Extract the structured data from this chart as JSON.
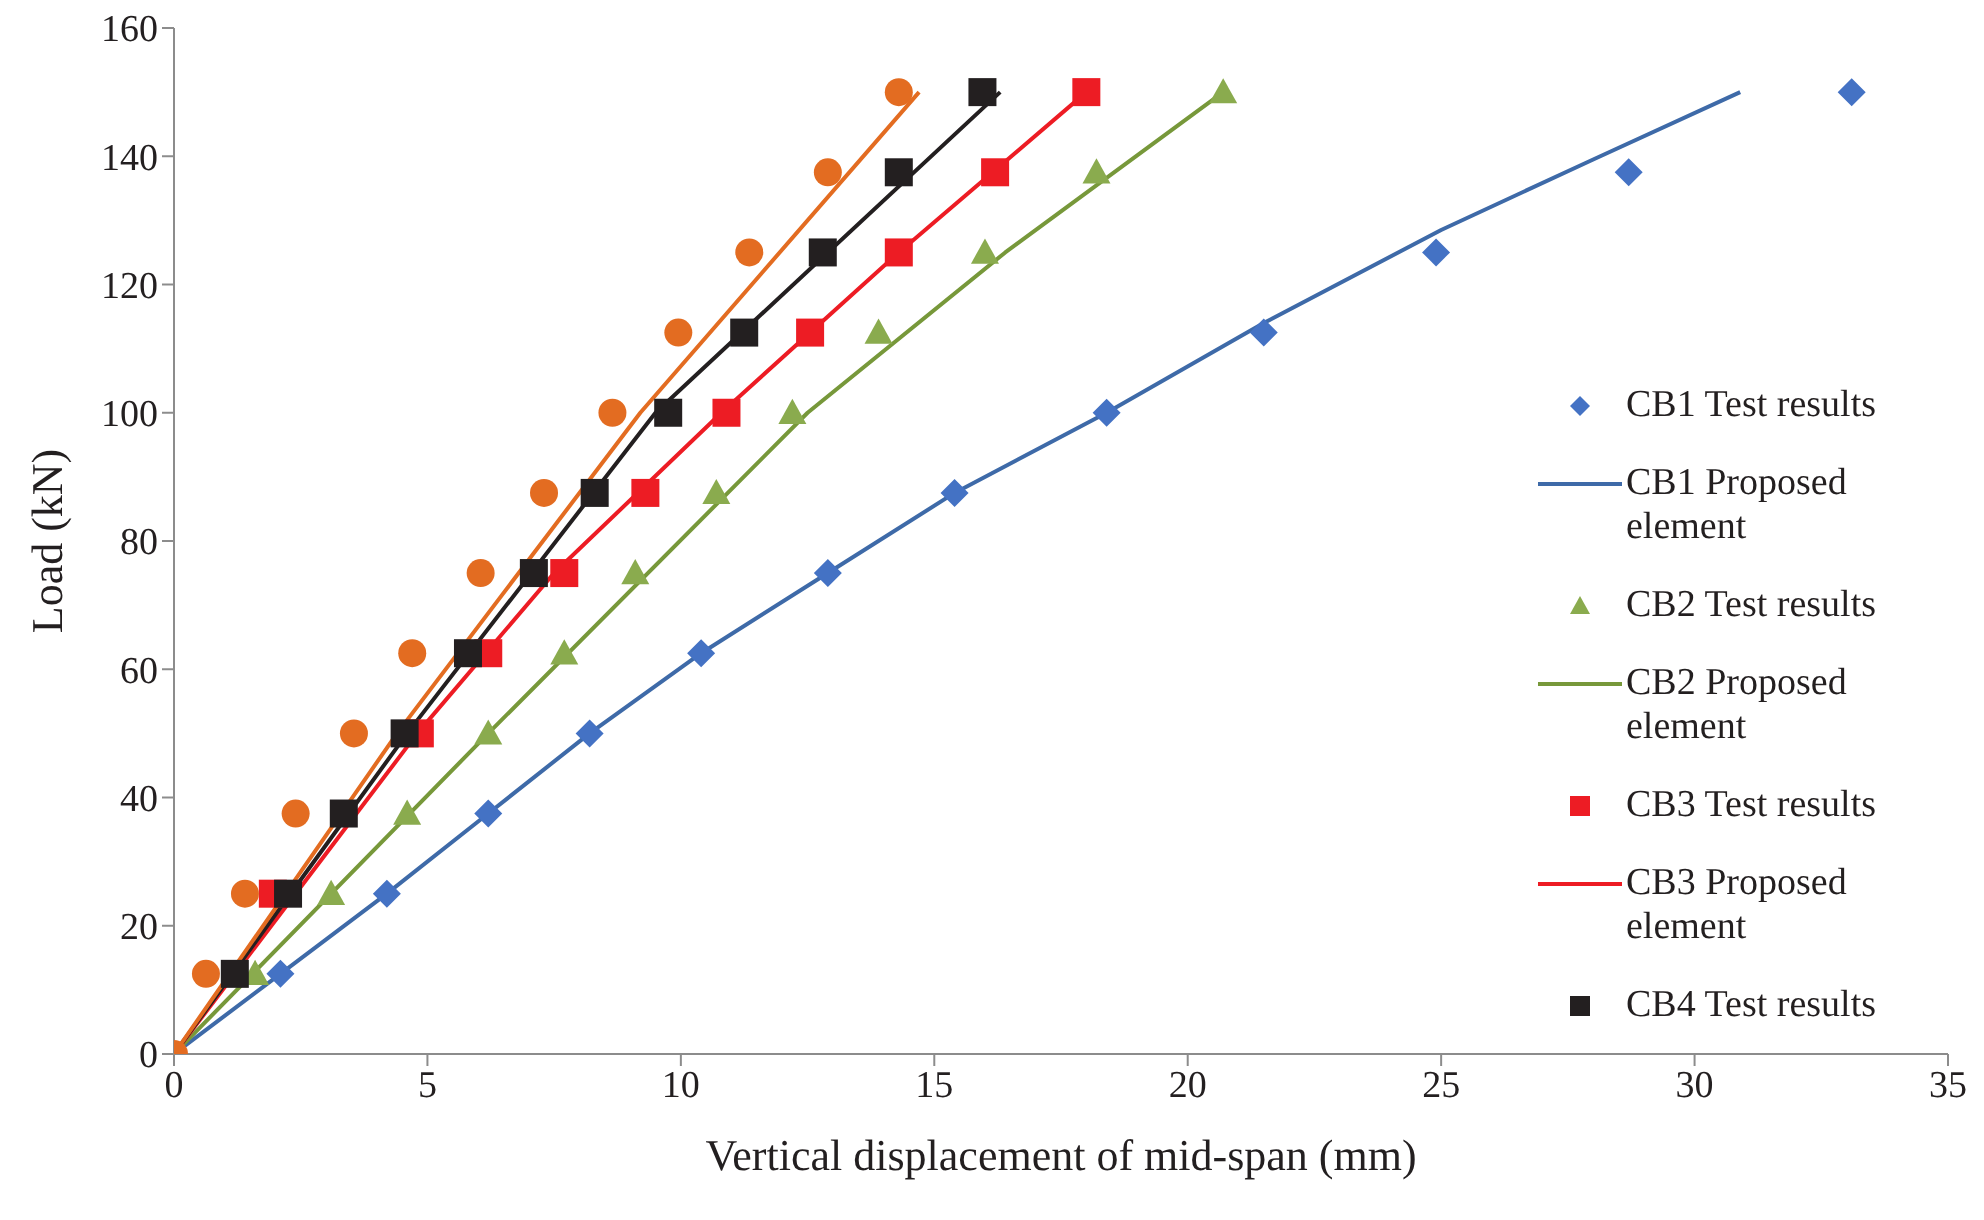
{
  "chart_data": {
    "type": "scatter",
    "xlabel": "Vertical displacement of mid-span (mm)",
    "ylabel": "Load (kN)",
    "xlim": [
      0,
      35
    ],
    "xticks": [
      0,
      5,
      10,
      15,
      20,
      25,
      30,
      35
    ],
    "ylim": [
      0,
      160
    ],
    "yticks": [
      0,
      20,
      40,
      60,
      80,
      100,
      120,
      140,
      160
    ],
    "grid": false,
    "legend": "right",
    "series": [
      {
        "name": "CB1 Test results",
        "marker": "diamond",
        "color": "#4472c4",
        "x": [
          2.1,
          4.2,
          6.2,
          8.2,
          10.4,
          12.9,
          15.4,
          18.4,
          21.5,
          24.9,
          28.7,
          33.1
        ],
        "values": [
          12.5,
          25,
          37.5,
          50,
          62.5,
          75,
          87.5,
          100,
          112.5,
          125,
          137.5,
          150
        ]
      },
      {
        "name": "CB1 Proposed element",
        "type": "line",
        "marker": "none",
        "color": "#3e6aa8",
        "x": [
          0,
          2.1,
          4.2,
          6.2,
          8.2,
          10.4,
          12.9,
          15.4,
          18.4,
          21.5,
          25,
          28,
          30.9
        ],
        "values": [
          0,
          12.5,
          25,
          37.5,
          50,
          62.5,
          75,
          87.5,
          100,
          114,
          128.5,
          139.5,
          150
        ]
      },
      {
        "name": "CB2 Test results",
        "marker": "triangle",
        "color": "#8aab4e",
        "x": [
          1.6,
          3.1,
          4.6,
          6.2,
          7.7,
          9.1,
          10.7,
          12.2,
          13.9,
          16.0,
          18.2,
          20.7
        ],
        "values": [
          12.5,
          25,
          37.5,
          50,
          62.5,
          75,
          87.5,
          100,
          112.5,
          125,
          137.5,
          150
        ]
      },
      {
        "name": "CB2 Proposed element",
        "type": "line",
        "marker": "none",
        "color": "#77983a",
        "x": [
          0,
          6.2,
          12.5,
          16.4,
          20.7
        ],
        "values": [
          0,
          50,
          100,
          125,
          150
        ]
      },
      {
        "name": "CB3 Test results",
        "marker": "square",
        "color": "#ed1c24",
        "x": [
          null,
          1.95,
          null,
          4.85,
          6.2,
          7.7,
          9.3,
          10.9,
          12.55,
          14.3,
          16.2,
          18.0
        ],
        "values": [
          null,
          25,
          null,
          50,
          62.5,
          75,
          87.5,
          100,
          112.5,
          125,
          137.5,
          150
        ]
      },
      {
        "name": "CB3 Proposed element",
        "type": "line",
        "marker": "none",
        "color": "#ed1c24",
        "x": [
          0,
          4.8,
          7.5,
          10.8,
          14.3,
          18.0
        ],
        "values": [
          0,
          50,
          75,
          100,
          125,
          150
        ]
      },
      {
        "name": "CB4 Test results",
        "marker": "square",
        "color": "#231f20",
        "x": [
          1.2,
          2.25,
          3.35,
          4.55,
          5.8,
          7.1,
          8.3,
          9.75,
          11.25,
          12.8,
          14.3,
          15.95
        ],
        "values": [
          12.5,
          25,
          37.5,
          50,
          62.5,
          75,
          87.5,
          100,
          112.5,
          125,
          137.5,
          150
        ]
      },
      {
        "type": "line",
        "marker": "none",
        "color": "#231f20",
        "x": [
          0,
          4.6,
          9.5,
          16.3
        ],
        "values": [
          0,
          50,
          100,
          150
        ]
      },
      {
        "marker": "circle",
        "color": "#e36c21",
        "x": [
          0,
          0.63,
          1.4,
          2.4,
          3.55,
          4.7,
          6.05,
          7.3,
          8.65,
          9.95,
          11.35,
          12.9,
          14.3
        ],
        "values": [
          0,
          12.5,
          25,
          37.5,
          50,
          62.5,
          75,
          87.5,
          100,
          112.5,
          125,
          137.5,
          150
        ]
      },
      {
        "type": "line",
        "marker": "none",
        "color": "#e36c21",
        "x": [
          0,
          4.4,
          9.2,
          14.7
        ],
        "values": [
          0,
          50,
          100,
          150
        ]
      }
    ]
  }
}
